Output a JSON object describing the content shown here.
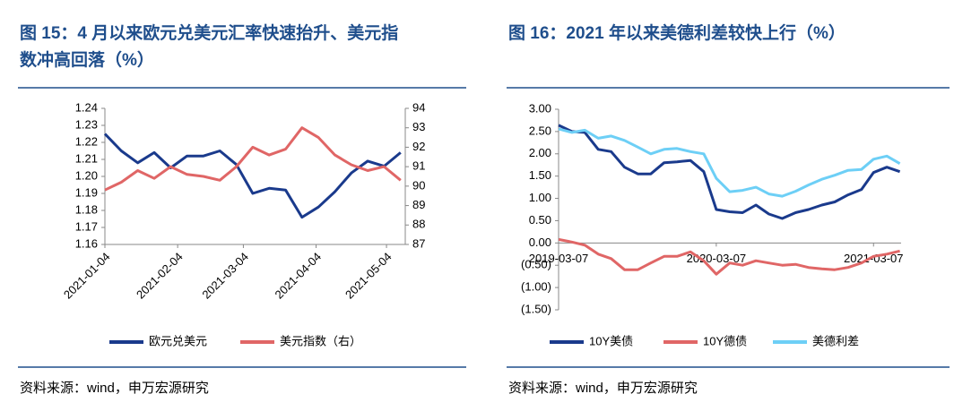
{
  "chart_data": [
    {
      "type": "line",
      "title": [
        "图 15：4 月以来欧元兑美元汇率快速抬升、美元指",
        "数冲高回落（%）"
      ],
      "source": "资料来源：wind，申万宏源研究",
      "x": [
        "2021-01-04",
        "2021-01-11",
        "2021-01-18",
        "2021-01-25",
        "2021-02-01",
        "2021-02-08",
        "2021-02-15",
        "2021-02-22",
        "2021-03-01",
        "2021-03-08",
        "2021-03-15",
        "2021-03-22",
        "2021-03-29",
        "2021-04-05",
        "2021-04-12",
        "2021-04-19",
        "2021-04-26",
        "2021-05-03",
        "2021-05-10"
      ],
      "xlim": [
        "2021-01-04",
        "2021-05-12"
      ],
      "xticks": [
        "2021-01-04",
        "2021-02-04",
        "2021-03-04",
        "2021-04-04",
        "2021-05-04"
      ],
      "ylim": [
        1.16,
        1.24
      ],
      "yticks": [
        1.16,
        1.17,
        1.18,
        1.19,
        {
          "value": 1.2,
          "label": "1.20"
        },
        1.21,
        1.22,
        1.23,
        1.24
      ],
      "y2lim": [
        87,
        94
      ],
      "y2ticks": [
        87,
        88,
        89,
        90,
        91,
        92,
        93,
        94
      ],
      "series": [
        {
          "name": "欧元兑美元",
          "color": "#1a3a8c",
          "values": [
            1.225,
            1.215,
            1.208,
            1.214,
            1.205,
            1.212,
            1.212,
            1.215,
            1.207,
            1.19,
            1.193,
            1.192,
            1.176,
            1.182,
            1.191,
            1.202,
            1.209,
            1.206,
            1.214
          ]
        },
        {
          "name": "美元指数（右）",
          "color": "#e06666",
          "axis": "y2",
          "values": [
            89.8,
            90.2,
            90.8,
            90.4,
            91.0,
            90.6,
            90.5,
            90.3,
            91.0,
            92.0,
            91.6,
            91.9,
            93.0,
            92.5,
            91.6,
            91.1,
            90.8,
            91.0,
            90.3
          ]
        }
      ]
    },
    {
      "type": "line",
      "title": [
        "图 16：2021 年以来美德利差较快上行（%）"
      ],
      "source": "资料来源：wind，申万宏源研究",
      "x": [
        "2019-03-07",
        "2019-04-07",
        "2019-05-07",
        "2019-06-07",
        "2019-07-07",
        "2019-08-07",
        "2019-09-07",
        "2019-10-07",
        "2019-11-07",
        "2019-12-07",
        "2020-01-07",
        "2020-02-07",
        "2020-03-07",
        "2020-04-07",
        "2020-05-07",
        "2020-06-07",
        "2020-07-07",
        "2020-08-07",
        "2020-09-07",
        "2020-10-07",
        "2020-11-07",
        "2020-12-07",
        "2021-01-07",
        "2021-02-07",
        "2021-03-07",
        "2021-04-07",
        "2021-05-07"
      ],
      "xlim": [
        "2019-03-07",
        "2021-05-10"
      ],
      "xticks": [
        "2019-03-07",
        "2020-03-07",
        "2021-03-07"
      ],
      "ylim": [
        -1.5,
        3.0
      ],
      "yticks": [
        {
          "value": -1.5,
          "label": "(1.50)"
        },
        {
          "value": -1.0,
          "label": "(1.00)"
        },
        {
          "value": -0.5,
          "label": "(0.50)"
        },
        {
          "value": 0,
          "label": "0.00"
        },
        {
          "value": 0.5,
          "label": "0.50"
        },
        {
          "value": 1.0,
          "label": "1.00"
        },
        {
          "value": 1.5,
          "label": "1.50"
        },
        {
          "value": 2.0,
          "label": "2.00"
        },
        {
          "value": 2.5,
          "label": "2.50"
        },
        {
          "value": 3.0,
          "label": "3.00"
        }
      ],
      "negative_tick_color": "#e00000",
      "series": [
        {
          "name": "10Y美债",
          "color": "#1a3a8c",
          "values": [
            2.64,
            2.5,
            2.48,
            2.1,
            2.05,
            1.7,
            1.55,
            1.55,
            1.8,
            1.82,
            1.85,
            1.6,
            0.75,
            0.7,
            0.68,
            0.85,
            0.65,
            0.55,
            0.68,
            0.75,
            0.85,
            0.92,
            1.08,
            1.2,
            1.58,
            1.7,
            1.6
          ]
        },
        {
          "name": "10Y德债",
          "color": "#e06666",
          "values": [
            0.08,
            0.02,
            -0.05,
            -0.25,
            -0.35,
            -0.6,
            -0.6,
            -0.45,
            -0.3,
            -0.3,
            -0.2,
            -0.4,
            -0.7,
            -0.45,
            -0.5,
            -0.4,
            -0.45,
            -0.5,
            -0.48,
            -0.55,
            -0.58,
            -0.6,
            -0.55,
            -0.45,
            -0.3,
            -0.25,
            -0.18
          ]
        },
        {
          "name": "美德利差",
          "color": "#6dcff6",
          "values": [
            2.56,
            2.48,
            2.53,
            2.35,
            2.4,
            2.3,
            2.15,
            2.0,
            2.1,
            2.12,
            2.05,
            2.0,
            1.45,
            1.15,
            1.18,
            1.25,
            1.1,
            1.05,
            1.16,
            1.3,
            1.43,
            1.52,
            1.63,
            1.65,
            1.88,
            1.95,
            1.78
          ]
        }
      ]
    }
  ]
}
